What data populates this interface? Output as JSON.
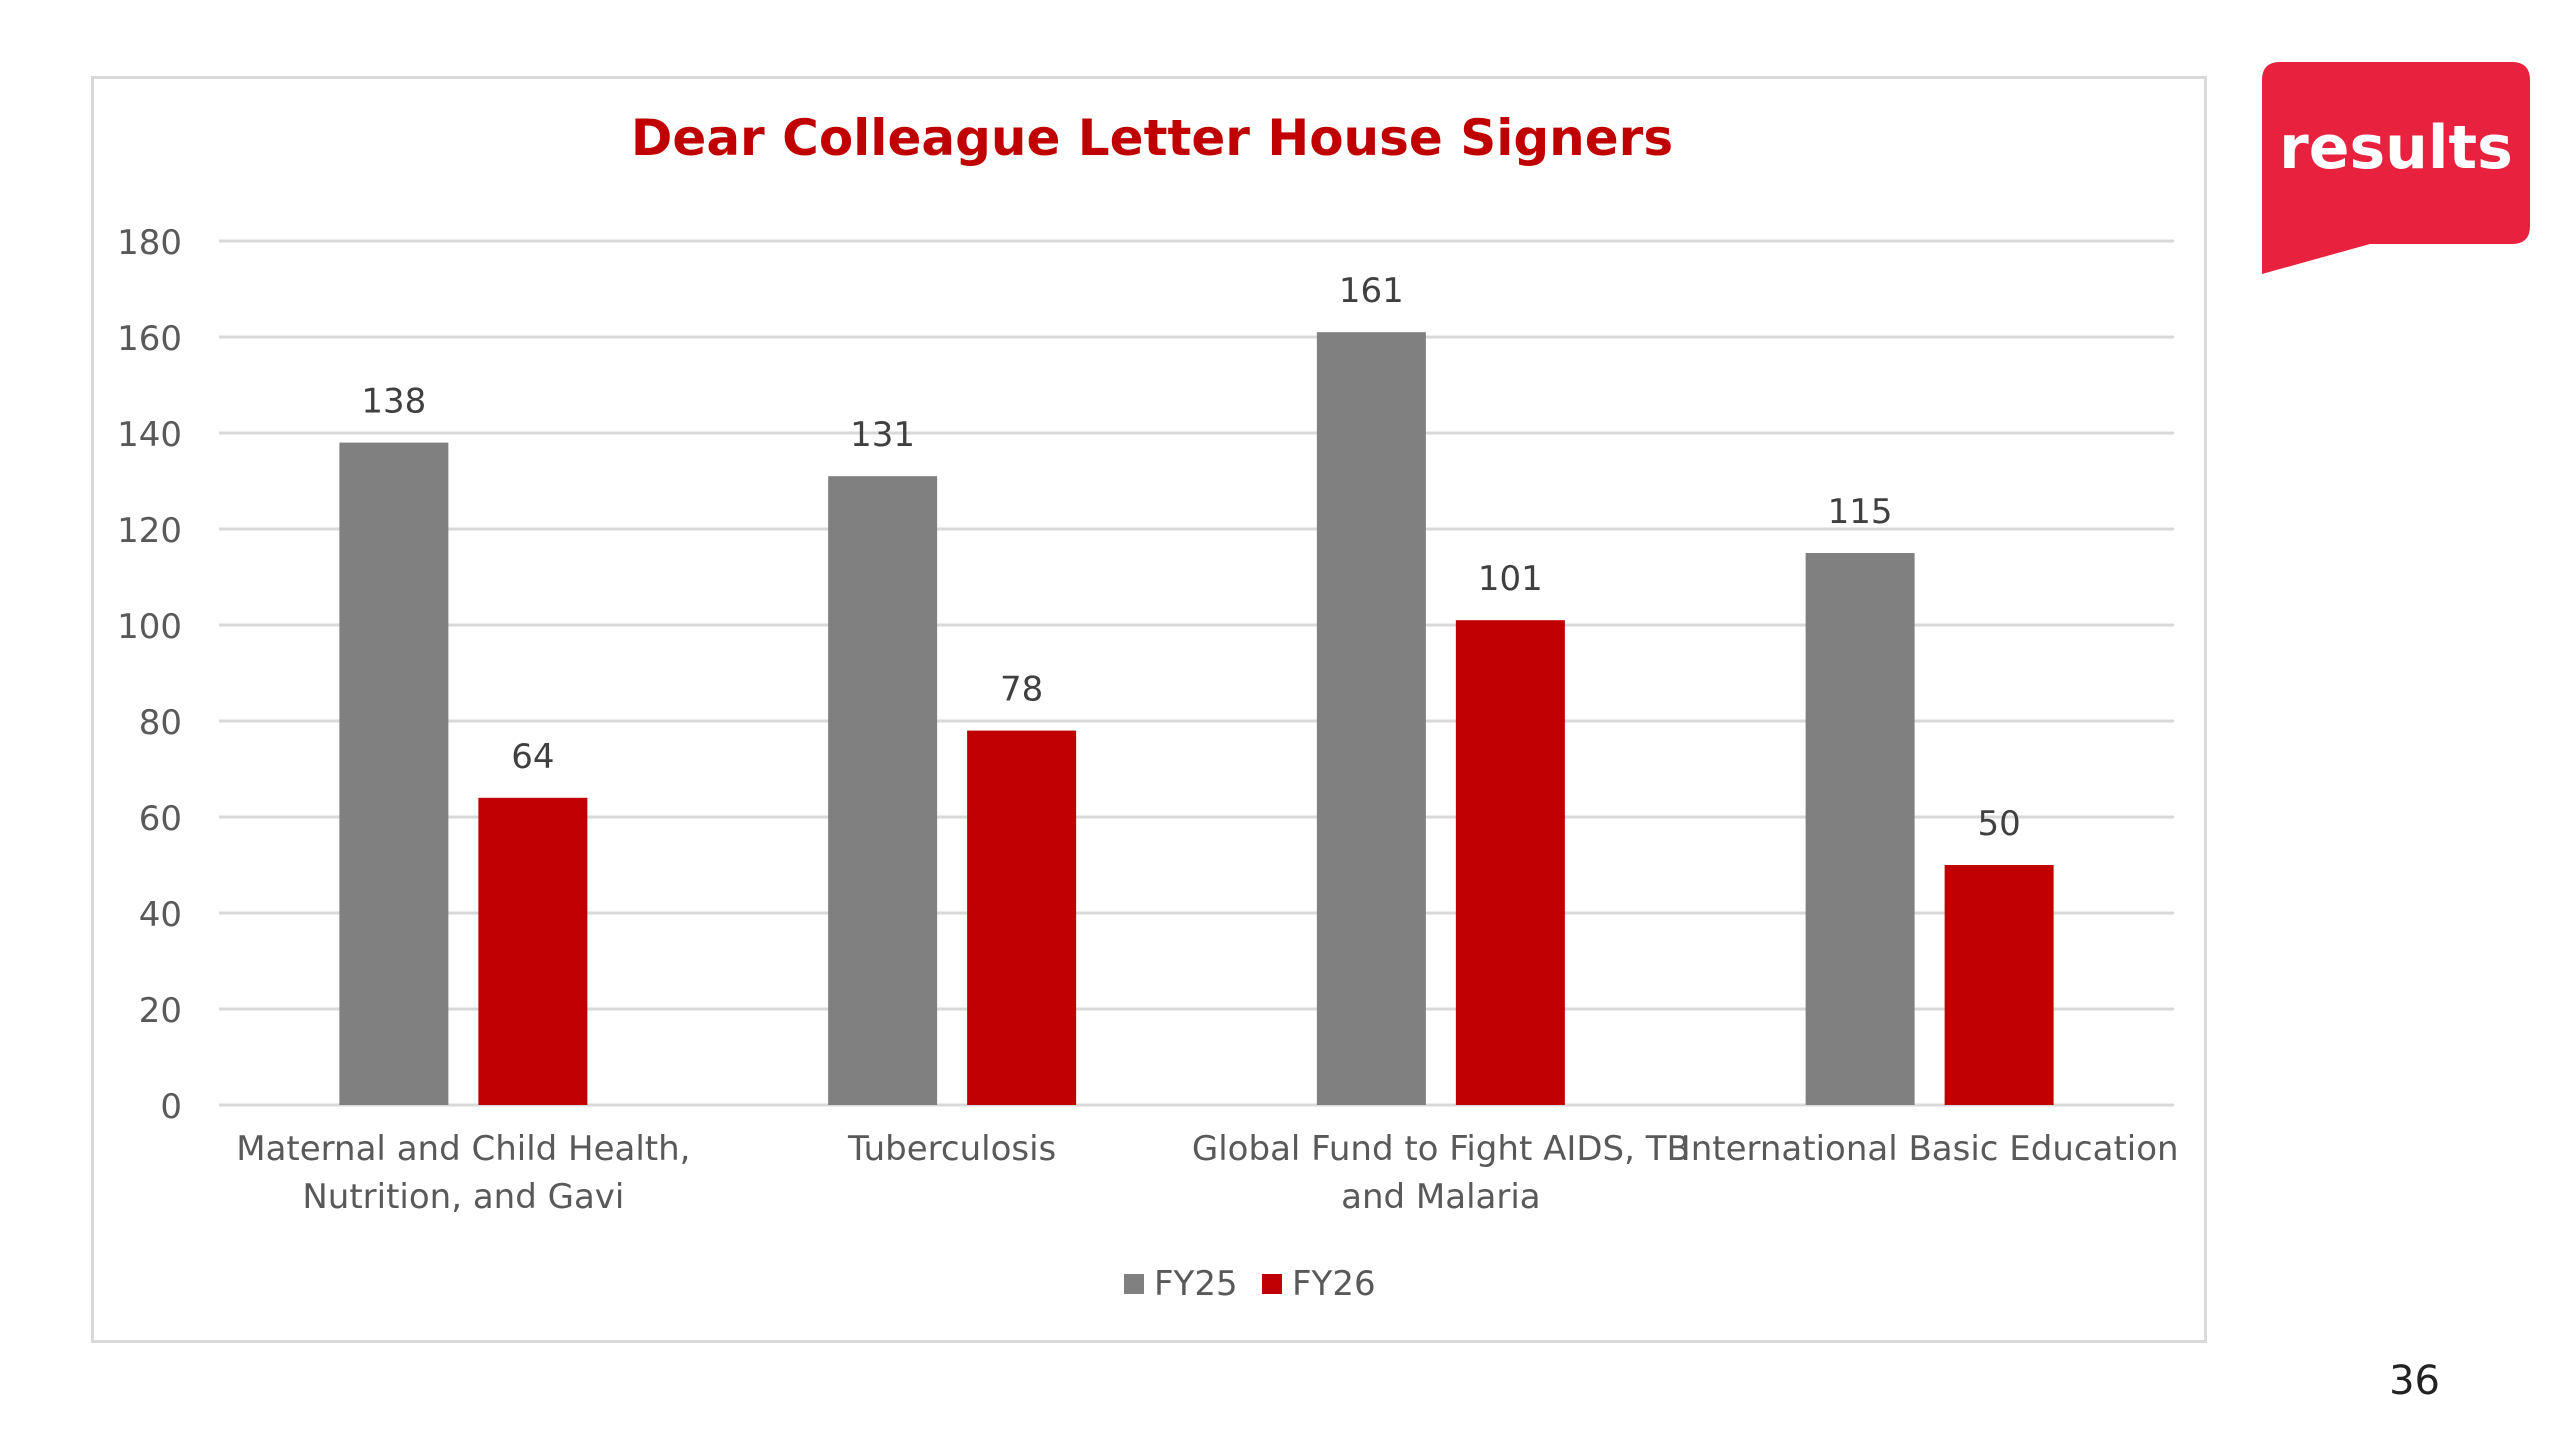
{
  "page": {
    "number": "36"
  },
  "logo": {
    "text": "results",
    "color": "#e8213f"
  },
  "chart_data": {
    "type": "bar",
    "title": "Dear Colleague Letter House Signers",
    "xlabel": "",
    "ylabel": "",
    "categories": [
      [
        "Maternal and Child Health,",
        "Nutrition, and Gavi"
      ],
      [
        "Tuberculosis"
      ],
      [
        "Global Fund to Fight AIDS, TB",
        "and Malaria"
      ],
      [
        "International Basic Education"
      ]
    ],
    "series": [
      {
        "name": "FY25",
        "color": "#808080",
        "values": [
          138,
          131,
          161,
          115
        ]
      },
      {
        "name": "FY26",
        "color": "#c00000",
        "values": [
          64,
          78,
          101,
          50
        ]
      }
    ],
    "ylim": [
      0,
      180
    ],
    "yticks": [
      0,
      20,
      40,
      60,
      80,
      100,
      120,
      140,
      160,
      180
    ],
    "grid": true,
    "legend": "bottom",
    "title_color": "#c00000"
  }
}
